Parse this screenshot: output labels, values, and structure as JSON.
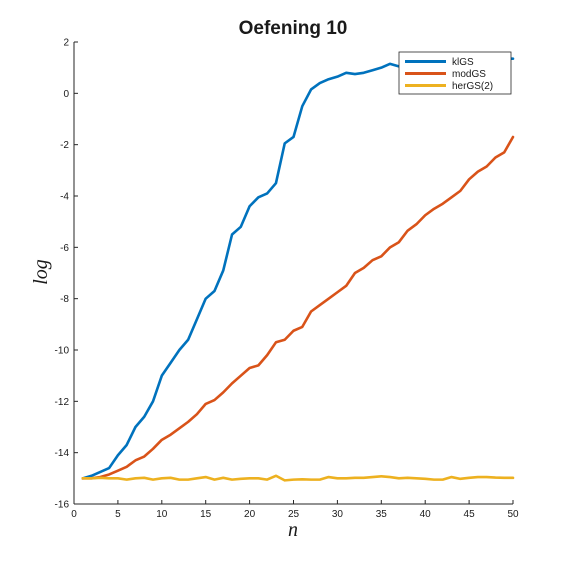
{
  "chart_data": {
    "type": "line",
    "title": "Oefening 10",
    "xlabel": "n",
    "ylabel": "log",
    "xlim": [
      0,
      50
    ],
    "ylim": [
      -16,
      2
    ],
    "xticks": [
      0,
      5,
      10,
      15,
      20,
      25,
      30,
      35,
      40,
      45,
      50
    ],
    "yticks": [
      2,
      0,
      -2,
      -4,
      -6,
      -8,
      -10,
      -12,
      -14,
      -16
    ],
    "grid": false,
    "legend_position": "top-right",
    "x": [
      1,
      2,
      3,
      4,
      5,
      6,
      7,
      8,
      9,
      10,
      11,
      12,
      13,
      14,
      15,
      16,
      17,
      18,
      19,
      20,
      21,
      22,
      23,
      24,
      25,
      26,
      27,
      28,
      29,
      30,
      31,
      32,
      33,
      34,
      35,
      36,
      37,
      38,
      39,
      40,
      41,
      42,
      43,
      44,
      45,
      46,
      47,
      48,
      49,
      50
    ],
    "series": [
      {
        "name": "klGS",
        "color": "#0072BD",
        "values": [
          -15,
          -14.9,
          -14.75,
          -14.6,
          -14.1,
          -13.7,
          -13,
          -12.6,
          -12,
          -11,
          -10.5,
          -10,
          -9.6,
          -8.8,
          -8,
          -7.7,
          -6.9,
          -5.5,
          -5.2,
          -4.4,
          -4.05,
          -3.9,
          -3.5,
          -1.95,
          -1.7,
          -0.5,
          0.15,
          0.4,
          0.55,
          0.65,
          0.8,
          0.75,
          0.8,
          0.9,
          1.0,
          1.15,
          1.05,
          1.1,
          1.3,
          1.3,
          1.35,
          1.3,
          1.35,
          1.35,
          1.35,
          1.3,
          1.35,
          1.35,
          1.35,
          1.35
        ]
      },
      {
        "name": "modGS",
        "color": "#D95319",
        "values": [
          -15,
          -15,
          -14.95,
          -14.85,
          -14.7,
          -14.55,
          -14.3,
          -14.15,
          -13.85,
          -13.5,
          -13.3,
          -13.05,
          -12.8,
          -12.5,
          -12.1,
          -11.95,
          -11.65,
          -11.3,
          -11,
          -10.7,
          -10.6,
          -10.2,
          -9.7,
          -9.6,
          -9.25,
          -9.1,
          -8.5,
          -8.25,
          -8.0,
          -7.75,
          -7.5,
          -7.0,
          -6.8,
          -6.5,
          -6.35,
          -6.0,
          -5.8,
          -5.35,
          -5.1,
          -4.75,
          -4.5,
          -4.3,
          -4.05,
          -3.8,
          -3.35,
          -3.05,
          -2.85,
          -2.5,
          -2.3,
          -1.7
        ]
      },
      {
        "name": "herGS(2)",
        "color": "#EDB120",
        "values": [
          -15,
          -15,
          -14.98,
          -15,
          -15,
          -15.05,
          -15,
          -14.98,
          -15.05,
          -15,
          -14.98,
          -15.05,
          -15.05,
          -15,
          -14.95,
          -15.05,
          -14.98,
          -15.05,
          -15.02,
          -15,
          -15,
          -15.05,
          -14.9,
          -15.08,
          -15.05,
          -15.04,
          -15.05,
          -15.05,
          -14.95,
          -15,
          -15,
          -14.98,
          -14.98,
          -14.95,
          -14.92,
          -14.95,
          -15,
          -14.98,
          -15,
          -15.02,
          -15.05,
          -15.05,
          -14.95,
          -15.02,
          -14.98,
          -14.95,
          -14.95,
          -14.97,
          -14.98,
          -14.98
        ]
      }
    ]
  }
}
